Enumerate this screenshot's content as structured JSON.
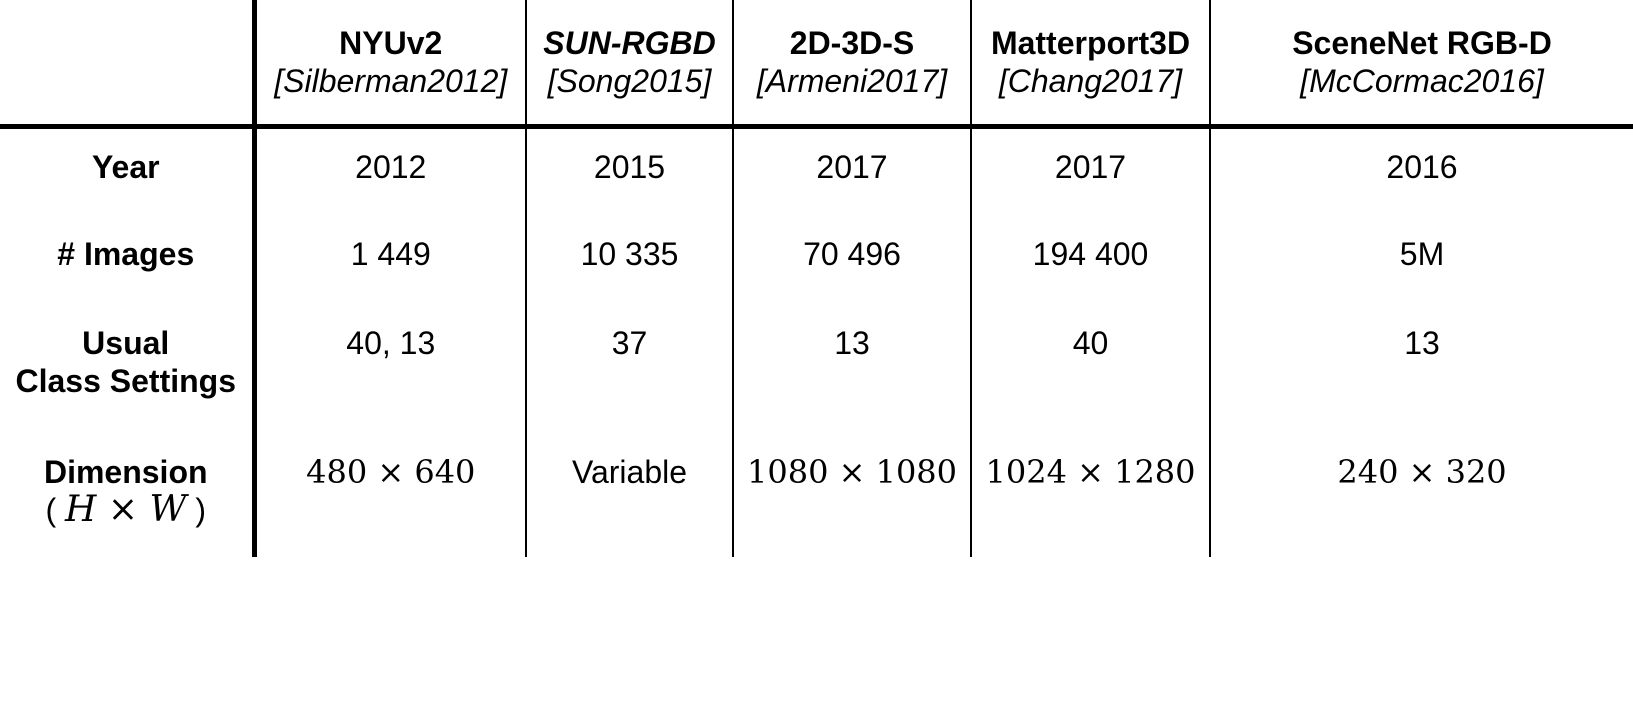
{
  "columns": [
    {
      "name": "NYUv2",
      "citation": "[Silberman2012]"
    },
    {
      "name": "SUN-RGBD",
      "citation": "[Song2015]"
    },
    {
      "name": "2D-3D-S",
      "citation": "[Armeni2017]"
    },
    {
      "name": "Matterport3D",
      "citation": "[Chang2017]"
    },
    {
      "name": "SceneNet RGB-D",
      "citation": "[McCormac2016]"
    }
  ],
  "rows": {
    "year": {
      "label": "Year",
      "values": [
        "2012",
        "2015",
        "2017",
        "2017",
        "2016"
      ]
    },
    "images": {
      "label": "# Images",
      "values": [
        "1 449",
        "10 335",
        "70 496",
        "194 400",
        "5M"
      ]
    },
    "class_settings": {
      "label_line1": "Usual",
      "label_line2": "Class Settings",
      "values": [
        "40, 13",
        "37",
        "13",
        "40",
        "13"
      ]
    },
    "dimension": {
      "label": "Dimension",
      "sublabel_open": "(",
      "sublabel_math": "H × W",
      "sublabel_close": ")",
      "values": [
        "480 × 640",
        "Variable",
        "1080 × 1080",
        "1024 × 1280",
        "240 × 320"
      ]
    }
  }
}
